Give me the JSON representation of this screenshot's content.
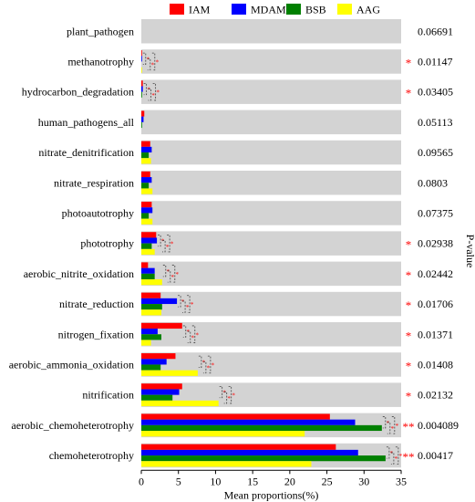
{
  "chart_data": {
    "type": "bar",
    "orientation": "horizontal",
    "title": "",
    "xlabel": "Mean proportions(%)",
    "ylabel": "",
    "right_axis_label": "P-value",
    "xlim": [
      0,
      35
    ],
    "x_ticks": [
      "0",
      "5",
      "10",
      "15",
      "20",
      "25",
      "30",
      "35"
    ],
    "grid": false,
    "legend_position": "top",
    "categories": [
      "plant_pathogen",
      "methanotrophy",
      "hydrocarbon_degradation",
      "human_pathogens_all",
      "nitrate_denitrification",
      "nitrate_respiration",
      "photoautotrophy",
      "phototrophy",
      "aerobic_nitrite_oxidation",
      "nitrate_reduction",
      "nitrogen_fixation",
      "aerobic_ammonia_oxidation",
      "nitrification",
      "aerobic_chemoheterotrophy",
      "chemoheterotrophy"
    ],
    "series": [
      {
        "name": "IAM",
        "color": "#ff0000",
        "values": [
          0.0,
          0.1,
          0.2,
          0.4,
          1.2,
          1.2,
          1.4,
          2.0,
          0.9,
          2.6,
          5.5,
          4.6,
          5.5,
          25.4,
          26.2
        ]
      },
      {
        "name": "MDAM",
        "color": "#0000ff",
        "values": [
          0.0,
          0.1,
          0.2,
          0.3,
          1.4,
          1.4,
          1.5,
          2.1,
          1.8,
          4.8,
          2.2,
          3.4,
          5.1,
          28.8,
          29.2
        ]
      },
      {
        "name": "BSB",
        "color": "#008000",
        "values": [
          0.0,
          0.0,
          0.1,
          0.1,
          1.0,
          1.0,
          1.0,
          1.4,
          1.8,
          2.8,
          2.7,
          2.6,
          4.2,
          32.4,
          32.9
        ]
      },
      {
        "name": "AAG",
        "color": "#ffff00",
        "values": [
          0.0,
          0.1,
          0.0,
          0.0,
          1.3,
          1.5,
          1.5,
          1.8,
          2.8,
          2.7,
          1.3,
          7.6,
          10.4,
          22.0,
          22.9
        ]
      }
    ],
    "p_values": [
      "0.06691",
      "0.01147",
      "0.03405",
      "0.05113",
      "0.09565",
      "0.0803",
      "0.07375",
      "0.02938",
      "0.02442",
      "0.01706",
      "0.01371",
      "0.01408",
      "0.02132",
      "0.004089",
      "0.00417"
    ],
    "significance": [
      "",
      "*",
      "*",
      "",
      "",
      "",
      "",
      "*",
      "*",
      "*",
      "*",
      "*",
      "*",
      "**",
      "**"
    ],
    "colors": {
      "panel_background": "#d3d3d3",
      "significance_mark": "#ff0000"
    }
  }
}
